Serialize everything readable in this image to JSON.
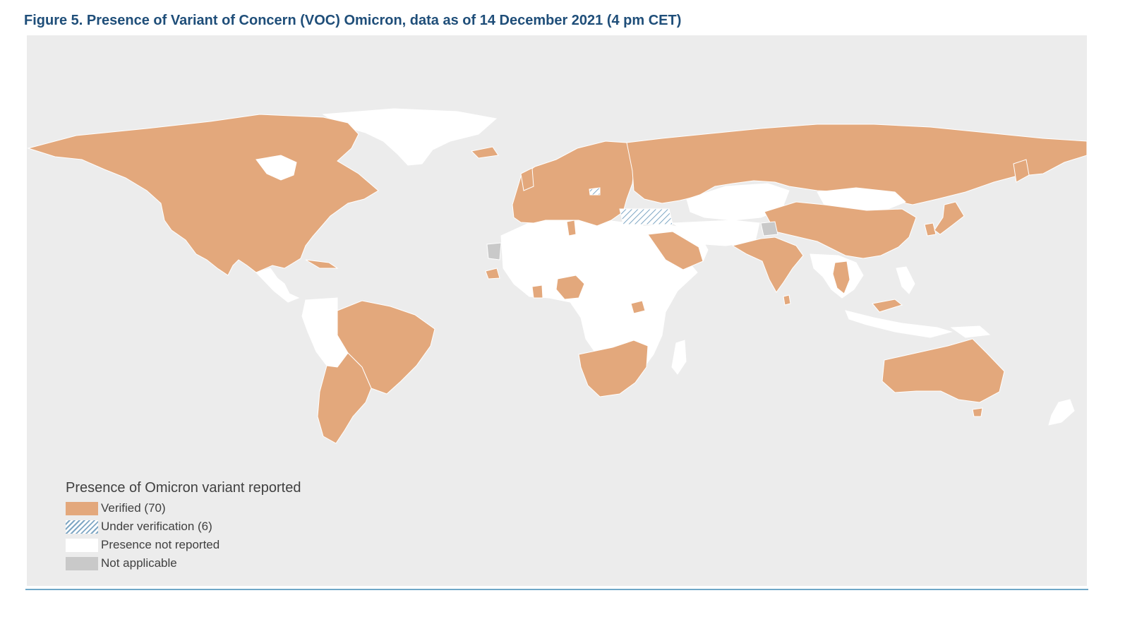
{
  "figure": {
    "title": "Figure 5. Presence of Variant of Concern (VOC) Omicron, data as of 14 December 2021 (4 pm CET)"
  },
  "colors": {
    "ocean": "#ececec",
    "verified": "#e3a87c",
    "under_verification_hatch": "#7fa7c4",
    "not_reported": "#ffffff",
    "not_applicable": "#c9c9c9",
    "title": "#1f4e79",
    "rule": "#6fa8c8"
  },
  "legend": {
    "title": "Presence of Omicron variant reported",
    "items": [
      {
        "key": "verified",
        "label": "Verified (70)"
      },
      {
        "key": "under_verification",
        "label": "Under verification (6)"
      },
      {
        "key": "not_reported",
        "label": "Presence not reported"
      },
      {
        "key": "not_applicable",
        "label": "Not applicable"
      }
    ]
  }
}
